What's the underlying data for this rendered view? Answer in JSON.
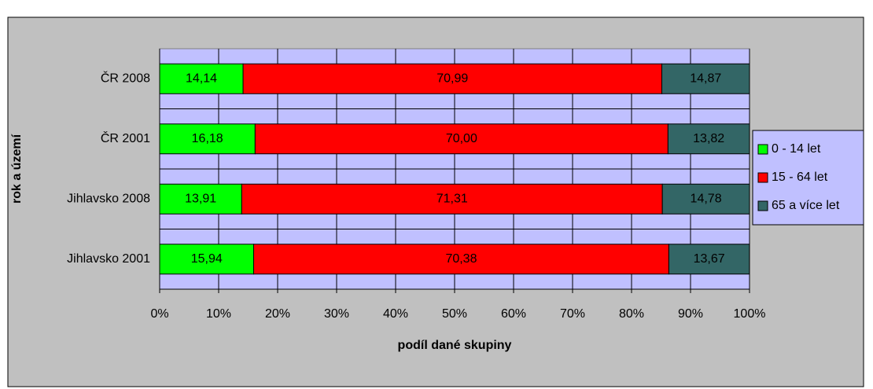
{
  "chart_data": {
    "type": "stacked-bar-horizontal",
    "x_label": "podíl dané skupiny",
    "y_label": "rok a území",
    "categories": [
      "ČR 2008",
      "ČR 2001",
      "Jihlavsko 2008",
      "Jihlavsko 2001"
    ],
    "series": [
      {
        "name": "0 - 14 let",
        "color": "#00ff00",
        "values": [
          14.14,
          16.18,
          13.91,
          15.94
        ],
        "value_labels": [
          "14,14",
          "16,18",
          "13,91",
          "15,94"
        ]
      },
      {
        "name": "15 - 64 let",
        "color": "#ff0000",
        "values": [
          70.99,
          70.0,
          71.31,
          70.38
        ],
        "value_labels": [
          "70,99",
          "70,00",
          "71,31",
          "70,38"
        ]
      },
      {
        "name": "65 a více let",
        "color": "#336666",
        "values": [
          14.87,
          13.82,
          14.78,
          13.67
        ],
        "value_labels": [
          "14,87",
          "13,82",
          "14,78",
          "13,67"
        ]
      }
    ],
    "xlim": [
      0,
      100
    ],
    "xticks": [
      {
        "value": 0,
        "label": "0%"
      },
      {
        "value": 10,
        "label": "10%"
      },
      {
        "value": 20,
        "label": "20%"
      },
      {
        "value": 30,
        "label": "30%"
      },
      {
        "value": 40,
        "label": "40%"
      },
      {
        "value": 50,
        "label": "50%"
      },
      {
        "value": 60,
        "label": "60%"
      },
      {
        "value": 70,
        "label": "70%"
      },
      {
        "value": 80,
        "label": "80%"
      },
      {
        "value": 90,
        "label": "90%"
      },
      {
        "value": 100,
        "label": "100%"
      }
    ],
    "grid": true,
    "legend": "right"
  }
}
